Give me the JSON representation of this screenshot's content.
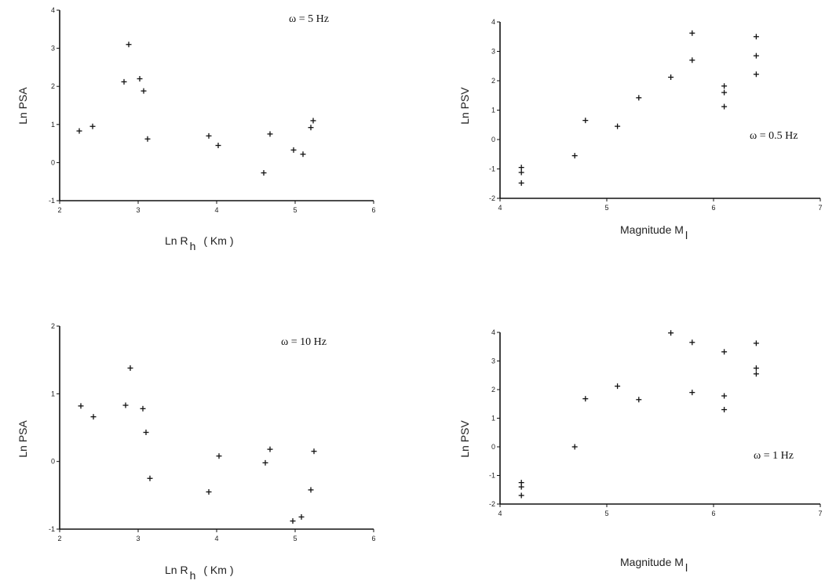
{
  "chart_data": [
    {
      "id": "tl",
      "type": "scatter",
      "annotation": "ω = 5 Hz",
      "ylabel": "Ln PSA",
      "xlabel": "Ln R",
      "xlabel_sub": "h",
      "xlabel_unit": "( Km )",
      "xlim": [
        2,
        6
      ],
      "ylim": [
        -1,
        4
      ],
      "xticks": [
        2,
        3,
        4,
        5,
        6
      ],
      "yticks": [
        -1,
        0,
        1,
        2,
        3,
        4
      ],
      "x": [
        2.25,
        2.42,
        2.82,
        2.88,
        3.02,
        3.07,
        3.12,
        3.9,
        4.02,
        4.6,
        4.68,
        4.98,
        5.1,
        5.2,
        5.23
      ],
      "y": [
        0.83,
        0.95,
        2.12,
        3.1,
        2.2,
        1.88,
        0.62,
        0.7,
        0.45,
        -0.27,
        0.75,
        0.33,
        0.22,
        0.92,
        1.1
      ]
    },
    {
      "id": "tr",
      "type": "scatter",
      "annotation": "ω = 0.5 Hz",
      "ylabel": "Ln PSV",
      "xlabel": "Magnitude  M",
      "xlabel_sub": "l",
      "xlabel_unit": "",
      "xlim": [
        4,
        7
      ],
      "ylim": [
        -2,
        4
      ],
      "xticks": [
        4,
        5,
        6,
        7
      ],
      "yticks": [
        -2,
        -1,
        0,
        1,
        2,
        3,
        4
      ],
      "x": [
        4.2,
        4.2,
        4.2,
        4.7,
        4.8,
        5.1,
        5.3,
        5.6,
        5.8,
        5.8,
        6.1,
        6.1,
        6.1,
        6.4,
        6.4,
        6.4
      ],
      "y": [
        -0.95,
        -1.12,
        -1.48,
        -0.55,
        0.65,
        0.45,
        1.42,
        2.12,
        3.62,
        2.7,
        1.82,
        1.6,
        1.12,
        3.5,
        2.85,
        2.22
      ]
    },
    {
      "id": "bl",
      "type": "scatter",
      "annotation": "ω = 10 Hz",
      "ylabel": "Ln PSA",
      "xlabel": "Ln R",
      "xlabel_sub": "h",
      "xlabel_unit": "( Km )",
      "xlim": [
        2,
        6
      ],
      "ylim": [
        -1,
        2
      ],
      "xticks": [
        2,
        3,
        4,
        5,
        6
      ],
      "yticks": [
        -1,
        0,
        1,
        2
      ],
      "x": [
        2.27,
        2.43,
        2.84,
        2.9,
        3.06,
        3.1,
        3.15,
        3.9,
        4.03,
        4.62,
        4.68,
        4.97,
        5.08,
        5.2,
        5.24
      ],
      "y": [
        0.82,
        0.66,
        0.83,
        1.38,
        0.78,
        0.43,
        -0.25,
        -0.45,
        0.08,
        -0.02,
        0.18,
        -0.88,
        -0.82,
        -0.42,
        0.15
      ]
    },
    {
      "id": "br",
      "type": "scatter",
      "annotation": "ω = 1 Hz",
      "ylabel": "Ln PSV",
      "xlabel": "Magnitude  M",
      "xlabel_sub": "l",
      "xlabel_unit": "",
      "xlim": [
        4,
        7
      ],
      "ylim": [
        -2,
        4
      ],
      "xticks": [
        4,
        5,
        6,
        7
      ],
      "yticks": [
        -2,
        -1,
        0,
        1,
        2,
        3,
        4
      ],
      "x": [
        4.2,
        4.2,
        4.2,
        4.7,
        4.8,
        5.1,
        5.3,
        5.6,
        5.8,
        5.8,
        6.1,
        6.1,
        6.1,
        6.4,
        6.4,
        6.4
      ],
      "y": [
        -1.25,
        -1.4,
        -1.7,
        0.0,
        1.68,
        2.12,
        1.65,
        3.98,
        3.65,
        1.9,
        3.32,
        1.78,
        1.3,
        3.62,
        2.75,
        2.55
      ]
    }
  ]
}
